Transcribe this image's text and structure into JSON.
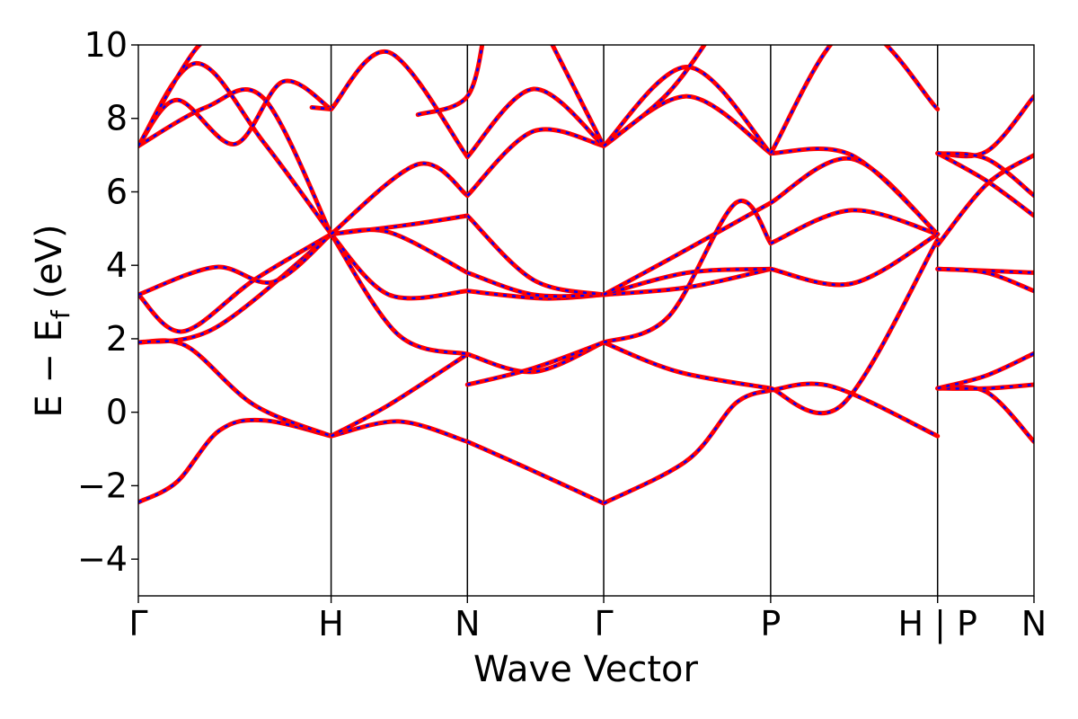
{
  "chart_data": {
    "type": "line",
    "title": "",
    "xlabel": "Wave Vector",
    "ylabel_main": "E − E",
    "ylabel_sub": "f",
    "ylabel_unit": " (eV)",
    "ylim": [
      -5,
      10
    ],
    "yticks": [
      -4,
      -2,
      0,
      2,
      4,
      6,
      8,
      10
    ],
    "ytick_labels": [
      "−4",
      "−2",
      "0",
      "2",
      "4",
      "6",
      "8",
      "10"
    ],
    "kpath": [
      {
        "label": "Γ",
        "x": 0.0
      },
      {
        "label": "H",
        "x": 1.0
      },
      {
        "label": "N",
        "x": 1.707
      },
      {
        "label": "Γ",
        "x": 2.414
      },
      {
        "label": "P",
        "x": 3.28
      },
      {
        "label": "H | P",
        "x": 4.146
      },
      {
        "label": "N",
        "x": 4.646
      }
    ],
    "grid": false,
    "legend": "none",
    "colors": {
      "solid": "#ff0000",
      "dashed": "#0000ff",
      "kline": "#000000"
    },
    "bands": [
      {
        "segments": [
          [
            [
              0,
              -2.45
            ],
            [
              0.2,
              -1.9
            ],
            [
              0.42,
              -0.5
            ],
            [
              0.65,
              -0.22
            ],
            [
              1.0,
              -0.65
            ]
          ],
          [
            [
              1.0,
              -0.65
            ],
            [
              1.35,
              -0.25
            ],
            [
              1.707,
              -0.8
            ]
          ],
          [
            [
              1.707,
              -0.8
            ],
            [
              2.05,
              -1.6
            ],
            [
              2.414,
              -2.48
            ]
          ],
          [
            [
              2.414,
              -2.48
            ],
            [
              2.85,
              -1.3
            ],
            [
              3.1,
              0.25
            ],
            [
              3.28,
              0.6
            ]
          ],
          [
            [
              3.28,
              0.6
            ],
            [
              3.6,
              0.7
            ],
            [
              4.146,
              -0.65
            ]
          ],
          [
            [
              4.146,
              0.65
            ],
            [
              4.4,
              0.55
            ],
            [
              4.646,
              -0.8
            ]
          ]
        ]
      },
      {
        "segments": [
          [
            [
              0,
              1.9
            ],
            [
              0.25,
              1.8
            ],
            [
              0.6,
              0.2
            ],
            [
              1.0,
              -0.65
            ]
          ],
          [
            [
              1.0,
              -0.65
            ],
            [
              1.3,
              0.2
            ],
            [
              1.707,
              1.58
            ]
          ],
          [
            [
              1.707,
              1.58
            ],
            [
              2.05,
              1.1
            ],
            [
              2.414,
              1.9
            ]
          ],
          [
            [
              2.414,
              1.9
            ],
            [
              2.8,
              1.1
            ],
            [
              3.28,
              0.65
            ]
          ],
          [
            [
              3.28,
              0.65
            ],
            [
              3.65,
              0.2
            ],
            [
              4.146,
              4.7
            ]
          ],
          [
            [
              4.146,
              0.65
            ],
            [
              4.4,
              0.65
            ],
            [
              4.646,
              0.75
            ]
          ]
        ]
      },
      {
        "segments": [
          [
            [
              0,
              3.2
            ],
            [
              0.23,
              2.2
            ],
            [
              0.6,
              3.6
            ],
            [
              1.0,
              4.85
            ]
          ],
          [
            [
              1.0,
              4.85
            ],
            [
              1.35,
              2.1
            ],
            [
              1.707,
              1.58
            ]
          ],
          [
            [
              1.707,
              0.75
            ],
            [
              2.05,
              1.2
            ],
            [
              2.414,
              1.9
            ]
          ],
          [
            [
              2.414,
              1.9
            ],
            [
              2.75,
              2.6
            ],
            [
              3.1,
              5.7
            ],
            [
              3.28,
              4.6
            ]
          ],
          [
            [
              3.28,
              4.6
            ],
            [
              3.7,
              5.5
            ],
            [
              4.146,
              4.85
            ]
          ],
          [
            [
              4.146,
              0.65
            ],
            [
              4.4,
              1.0
            ],
            [
              4.646,
              1.6
            ]
          ]
        ]
      },
      {
        "segments": [
          [
            [
              0,
              1.9
            ],
            [
              0.4,
              2.3
            ],
            [
              1.0,
              4.85
            ]
          ],
          [
            [
              1.0,
              4.85
            ],
            [
              1.3,
              3.2
            ],
            [
              1.707,
              3.3
            ]
          ],
          [
            [
              1.707,
              3.3
            ],
            [
              2.1,
              3.1
            ],
            [
              2.414,
              3.2
            ]
          ],
          [
            [
              2.414,
              3.2
            ],
            [
              2.85,
              3.4
            ],
            [
              3.28,
              3.9
            ]
          ],
          [
            [
              3.28,
              3.9
            ],
            [
              3.7,
              3.5
            ],
            [
              4.146,
              4.85
            ]
          ],
          [
            [
              4.146,
              3.9
            ],
            [
              4.4,
              3.85
            ],
            [
              4.646,
              3.8
            ]
          ]
        ]
      },
      {
        "segments": [
          [
            [
              0,
              3.2
            ],
            [
              0.4,
              3.95
            ],
            [
              0.7,
              3.55
            ],
            [
              1.0,
              4.85
            ]
          ],
          [
            [
              1.0,
              4.85
            ],
            [
              1.3,
              4.9
            ],
            [
              1.707,
              3.8
            ]
          ],
          [
            [
              1.707,
              3.8
            ],
            [
              2.05,
              3.2
            ],
            [
              2.414,
              3.2
            ]
          ],
          [
            [
              2.414,
              3.2
            ],
            [
              2.85,
              3.8
            ],
            [
              3.28,
              3.9
            ]
          ],
          [
            [
              3.28,
              3.9
            ],
            [
              3.7,
              3.5
            ],
            [
              4.146,
              4.85
            ]
          ],
          [
            [
              4.146,
              3.9
            ],
            [
              4.4,
              3.8
            ],
            [
              4.646,
              3.3
            ]
          ]
        ]
      },
      {
        "segments": [
          [
            [
              0,
              7.25
            ],
            [
              0.35,
              8.3
            ],
            [
              0.65,
              8.55
            ],
            [
              1.0,
              4.85
            ]
          ],
          [
            [
              1.0,
              4.85
            ],
            [
              1.4,
              5.1
            ],
            [
              1.707,
              5.35
            ]
          ],
          [
            [
              1.707,
              5.35
            ],
            [
              2.05,
              3.6
            ],
            [
              2.414,
              3.2
            ]
          ],
          [
            [
              2.414,
              3.2
            ],
            [
              2.8,
              4.3
            ],
            [
              3.28,
              5.7
            ]
          ],
          [
            [
              3.28,
              5.7
            ],
            [
              3.7,
              6.9
            ],
            [
              4.146,
              4.85
            ]
          ],
          [
            [
              4.146,
              4.55
            ],
            [
              4.4,
              6.2
            ],
            [
              4.646,
              7.0
            ]
          ]
        ]
      },
      {
        "segments": [
          [
            [
              0,
              7.25
            ],
            [
              0.3,
              9.5
            ],
            [
              0.65,
              7.35
            ],
            [
              1.0,
              4.85
            ]
          ],
          [
            [
              1.0,
              4.85
            ],
            [
              1.45,
              6.75
            ],
            [
              1.707,
              5.9
            ]
          ],
          [
            [
              1.707,
              5.9
            ],
            [
              2.05,
              7.65
            ],
            [
              2.414,
              7.25
            ]
          ],
          [
            [
              2.414,
              7.25
            ],
            [
              2.85,
              8.6
            ],
            [
              3.28,
              7.05
            ]
          ],
          [
            [
              3.28,
              7.05
            ],
            [
              3.7,
              7.0
            ],
            [
              4.146,
              4.85
            ]
          ],
          [
            [
              4.146,
              7.05
            ],
            [
              4.4,
              6.3
            ],
            [
              4.646,
              5.35
            ]
          ]
        ]
      },
      {
        "segments": [
          [
            [
              0,
              7.25
            ],
            [
              0.2,
              8.5
            ],
            [
              0.5,
              7.3
            ],
            [
              0.75,
              9.0
            ],
            [
              1.0,
              8.25
            ]
          ],
          [
            [
              1.0,
              8.25
            ],
            [
              1.3,
              9.8
            ],
            [
              1.707,
              6.95
            ]
          ],
          [
            [
              1.707,
              6.95
            ],
            [
              2.05,
              8.8
            ],
            [
              2.414,
              7.25
            ]
          ],
          [
            [
              2.414,
              7.25
            ],
            [
              2.85,
              9.4
            ],
            [
              3.28,
              7.05
            ]
          ],
          [
            [
              3.28,
              7.05
            ],
            [
              3.7,
              10.5
            ],
            [
              4.146,
              8.25
            ]
          ],
          [
            [
              4.146,
              7.05
            ],
            [
              4.4,
              7.1
            ],
            [
              4.646,
              8.6
            ]
          ]
        ]
      },
      {
        "segments": [
          [
            [
              0,
              7.25
            ],
            [
              0.3,
              9.9
            ],
            [
              0.5,
              10.5
            ]
          ],
          [
            [
              0.9,
              8.3
            ],
            [
              1.0,
              8.25
            ]
          ],
          [
            [
              1.45,
              8.1
            ],
            [
              1.707,
              8.6
            ],
            [
              1.8,
              10.5
            ]
          ],
          [
            [
              2.1,
              10.5
            ],
            [
              2.414,
              7.25
            ]
          ],
          [
            [
              2.414,
              7.25
            ],
            [
              2.75,
              8.7
            ],
            [
              3.0,
              10.5
            ]
          ],
          [
            [
              4.146,
              7.05
            ],
            [
              4.4,
              6.9
            ],
            [
              4.646,
              5.9
            ]
          ]
        ]
      }
    ]
  }
}
